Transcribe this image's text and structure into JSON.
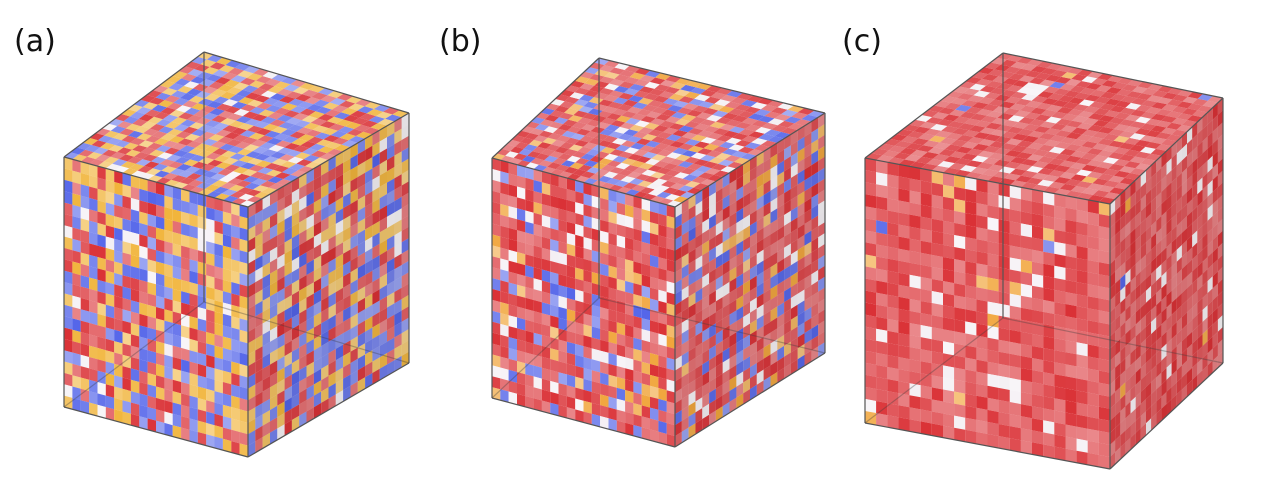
{
  "figure": {
    "panels": [
      {
        "label": "(a)",
        "description_colors": {
          "red": "#d8262b",
          "blue": "#4a5ce8",
          "yellow": "#f0b030",
          "white": "#f3eef3"
        },
        "mix": [
          0.36,
          0.32,
          0.26,
          0.06
        ]
      },
      {
        "label": "(b)",
        "description_colors": {
          "red": "#d8262b",
          "blue": "#4a5ce8",
          "yellow": "#f0a030",
          "white": "#f3eef3"
        },
        "mix": [
          0.62,
          0.2,
          0.1,
          0.08
        ]
      },
      {
        "label": "(c)",
        "description_colors": {
          "red": "#d8262b",
          "blue": "#4a5ce8",
          "yellow": "#f0a030",
          "white": "#f3eef3"
        },
        "mix": [
          0.92,
          0.01,
          0.01,
          0.06
        ]
      }
    ]
  }
}
